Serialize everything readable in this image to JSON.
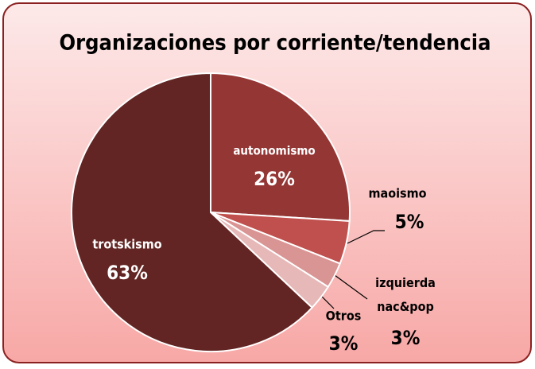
{
  "chart_data": {
    "type": "pie",
    "title": "Organizaciones por corriente/tendencia",
    "categories": [
      "autonomismo",
      "maoismo",
      "izquierda nac&pop",
      "Otros",
      "trotskismo"
    ],
    "values": [
      26,
      5,
      3,
      3,
      63
    ],
    "value_labels": [
      "26%",
      "5%",
      "3%",
      "3%",
      "63%"
    ],
    "colors": [
      "#943634",
      "#c0504d",
      "#d99594",
      "#e6b9b8",
      "#632523"
    ]
  }
}
